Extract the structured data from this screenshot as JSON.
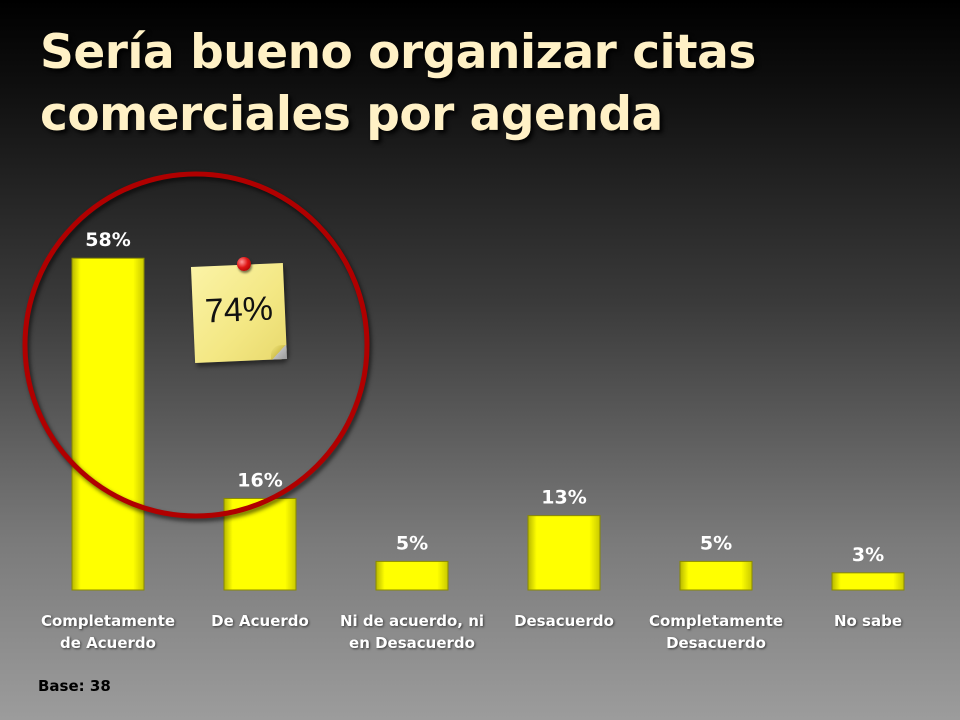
{
  "slide": {
    "title_line1": "Sería bueno organizar citas",
    "title_line2": "comerciales por agenda",
    "base_label": "Base: 38"
  },
  "callout": {
    "value": "74%"
  },
  "colors": {
    "bar_fill": "#ffff00",
    "circle_stroke": "#b00000",
    "title_text": "#fff1c6",
    "value_label": "#ffffff"
  },
  "chart_data": {
    "type": "bar",
    "categories": [
      [
        "Completamente",
        "de Acuerdo"
      ],
      [
        "De Acuerdo"
      ],
      [
        "Ni de acuerdo, ni",
        "en Desacuerdo"
      ],
      [
        "Desacuerdo"
      ],
      [
        "Completamente",
        "Desacuerdo"
      ],
      [
        "No sabe"
      ]
    ],
    "values": [
      58,
      16,
      5,
      13,
      5,
      3
    ],
    "value_labels": [
      "58%",
      "16%",
      "5%",
      "13%",
      "5%",
      "3%"
    ],
    "unit": "%",
    "ylim": [
      0,
      60
    ],
    "grid": false,
    "legend": "none"
  }
}
